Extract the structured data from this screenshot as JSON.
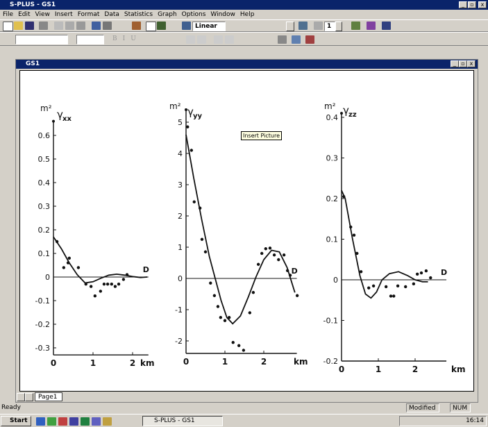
{
  "window": {
    "title": "S-PLUS - GS1"
  },
  "menu": [
    "File",
    "Edit",
    "View",
    "Insert",
    "Format",
    "Data",
    "Statistics",
    "Graph",
    "Options",
    "Window",
    "Help"
  ],
  "toolbar": {
    "axis_type": "Linear",
    "page_number": "1",
    "format_buttons": [
      "B",
      "I",
      "U"
    ]
  },
  "document": {
    "title": "GS1",
    "tooltip": "Insert Picture",
    "tab": "Page1"
  },
  "charts": [
    {
      "y_unit": "m²",
      "symbol": "γ",
      "subscript": "xx",
      "x_unit": "km",
      "marker": "D",
      "xlim": [
        0,
        2.4
      ],
      "ylim": [
        -0.33,
        0.66
      ],
      "xticks": [
        0,
        1,
        2
      ],
      "yticks": [
        -0.3,
        -0.2,
        -0.1,
        0,
        0.1,
        0.2,
        0.3,
        0.4,
        0.5,
        0.6
      ],
      "points": {
        "x": [
          0.09,
          0.26,
          0.37,
          0.4,
          0.63,
          0.82,
          0.95,
          1.05,
          1.19,
          1.28,
          1.37,
          1.47,
          1.56,
          1.65,
          1.77,
          1.86
        ],
        "y": [
          0.15,
          0.04,
          0.06,
          0.08,
          0.04,
          -0.03,
          -0.04,
          -0.08,
          -0.06,
          -0.03,
          -0.03,
          -0.03,
          -0.04,
          -0.03,
          -0.01,
          0.01
        ]
      },
      "curve": {
        "x": [
          0,
          0.2,
          0.4,
          0.6,
          0.8,
          1.0,
          1.2,
          1.4,
          1.6,
          1.8,
          2.0,
          2.2,
          2.37
        ],
        "y": [
          0.17,
          0.12,
          0.06,
          0.01,
          -0.025,
          -0.02,
          -0.005,
          0.008,
          0.012,
          0.008,
          0.002,
          -0.002,
          0
        ]
      }
    },
    {
      "y_unit": "m²",
      "symbol": "γ",
      "subscript": "yy",
      "x_unit": "km",
      "marker": "D",
      "xlim": [
        0,
        2.85
      ],
      "ylim": [
        -2.4,
        5.4
      ],
      "xticks": [
        0,
        1,
        2
      ],
      "yticks": [
        -2,
        -1,
        0,
        1,
        2,
        3,
        4,
        5
      ],
      "points": {
        "x": [
          0.04,
          0.14,
          0.21,
          0.36,
          0.41,
          0.5,
          0.63,
          0.73,
          0.82,
          0.89,
          1.0,
          1.11,
          1.21,
          1.36,
          1.48,
          1.64,
          1.73,
          1.86,
          1.95,
          2.05,
          2.16,
          2.27,
          2.38,
          2.52,
          2.61,
          2.68,
          2.86
        ],
        "y": [
          4.85,
          4.1,
          2.45,
          2.25,
          1.25,
          0.85,
          -0.15,
          -0.55,
          -0.9,
          -1.25,
          -1.35,
          -1.25,
          -2.05,
          -2.15,
          -2.3,
          -1.1,
          -0.45,
          0.45,
          0.8,
          0.95,
          0.97,
          0.75,
          0.6,
          0.75,
          0.25,
          0.1,
          -0.55
        ]
      },
      "curve": {
        "x": [
          0,
          0.2,
          0.4,
          0.6,
          0.75,
          0.9,
          1.05,
          1.2,
          1.4,
          1.6,
          1.8,
          2.0,
          2.2,
          2.4,
          2.6,
          2.8
        ],
        "y": [
          4.6,
          3.2,
          1.9,
          0.7,
          0,
          -0.7,
          -1.25,
          -1.45,
          -1.2,
          -0.6,
          0.05,
          0.6,
          0.9,
          0.85,
          0.35,
          -0.45
        ]
      }
    },
    {
      "y_unit": "m²",
      "symbol": "γ",
      "subscript": "zz",
      "x_unit": "km",
      "marker": "D",
      "xlim": [
        0,
        2.85
      ],
      "ylim": [
        -0.2,
        0.41
      ],
      "xticks": [
        0,
        1,
        2
      ],
      "yticks": [
        -0.2,
        -0.1,
        0,
        0.1,
        0.2,
        0.3,
        0.4
      ],
      "points": {
        "x": [
          0.06,
          0.25,
          0.34,
          0.42,
          0.53,
          0.74,
          0.87,
          1.21,
          1.34,
          1.42,
          1.53,
          1.74,
          1.96,
          2.06,
          2.17,
          2.3,
          2.42
        ],
        "y": [
          0.205,
          0.13,
          0.11,
          0.065,
          0.02,
          -0.02,
          -0.015,
          -0.017,
          -0.04,
          -0.04,
          -0.015,
          -0.017,
          -0.01,
          0.014,
          0.017,
          0.022,
          0.005
        ]
      },
      "curve": {
        "x": [
          0,
          0.1,
          0.3,
          0.5,
          0.65,
          0.8,
          0.95,
          1.1,
          1.3,
          1.55,
          1.8,
          2.0,
          2.2,
          2.35
        ],
        "y": [
          0.22,
          0.2,
          0.1,
          0.01,
          -0.035,
          -0.045,
          -0.03,
          0,
          0.015,
          0.02,
          0.01,
          0,
          -0.005,
          -0.005
        ]
      }
    }
  ],
  "status": {
    "left": "Ready",
    "mode": "Modified",
    "num": "NUM"
  },
  "taskbar": {
    "start": "Start",
    "task": "S-PLUS - GS1",
    "clock": "16:14"
  }
}
